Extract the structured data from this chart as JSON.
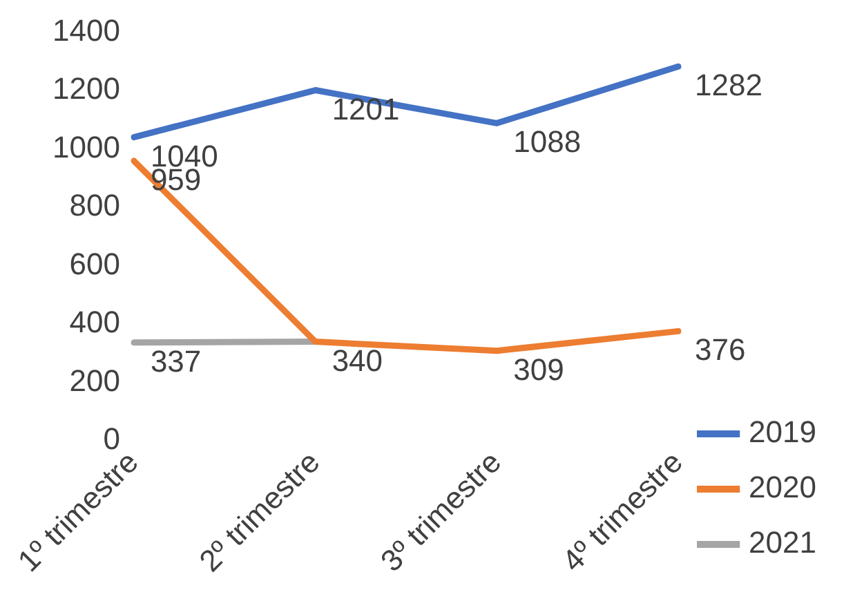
{
  "chart_data": {
    "type": "line",
    "categories": [
      "1º trimestre",
      "2º trimestre",
      "3º trimestre",
      "4º trimestre"
    ],
    "series": [
      {
        "name": "2019",
        "color": "#4472c4",
        "values": [
          1040,
          1201,
          1088,
          1282
        ],
        "value_labels": [
          "1040",
          "1201",
          "1088",
          "1282"
        ]
      },
      {
        "name": "2020",
        "color": "#ed7d31",
        "values": [
          959,
          340,
          309,
          376
        ],
        "value_labels": [
          "959",
          "340",
          "309",
          "376"
        ]
      },
      {
        "name": "2021",
        "color": "#a5a5a5",
        "values": [
          337,
          340,
          null,
          null
        ],
        "value_labels": [
          "337",
          null,
          null,
          null
        ]
      }
    ],
    "ylim": [
      0,
      1400
    ],
    "yticks": [
      0,
      200,
      400,
      600,
      800,
      1000,
      1200,
      1400
    ],
    "grid": false,
    "legend": "bottom right",
    "marker": "none",
    "line_style": "solid"
  }
}
